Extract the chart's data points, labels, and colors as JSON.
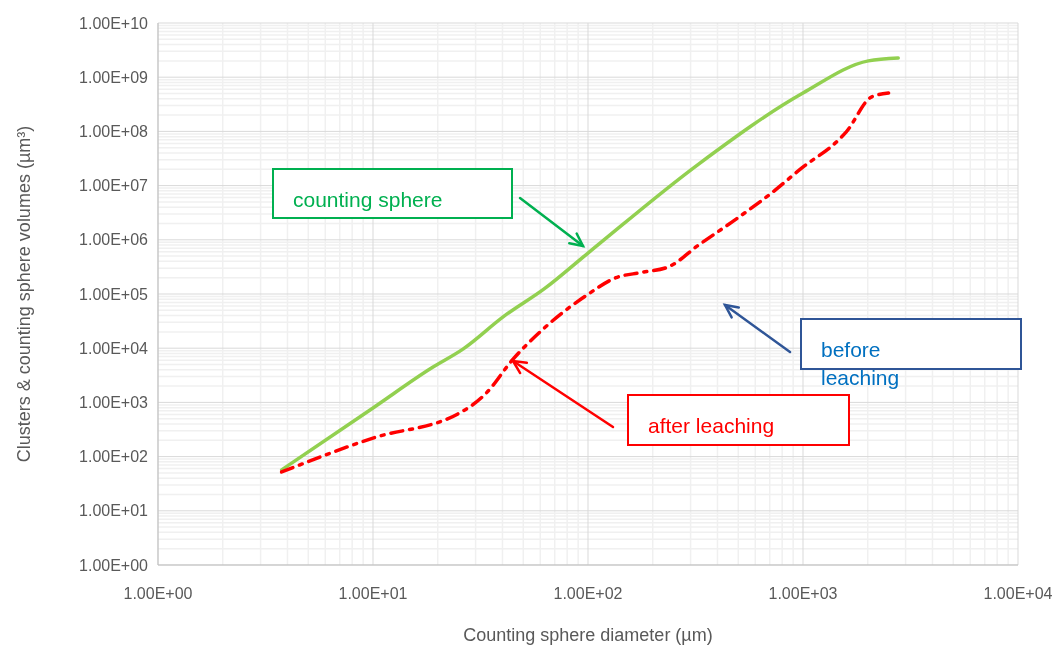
{
  "chart_data": {
    "type": "line",
    "xlabel": "Counting sphere diameter (µm)",
    "ylabel": "Clusters & counting sphere volumes (µm³)",
    "log": "xy",
    "grid": true,
    "marker": "none",
    "xlim": [
      1,
      10000
    ],
    "xticks": [
      {
        "value": 1,
        "label": "1.00E+00"
      },
      {
        "value": 10,
        "label": "1.00E+01"
      },
      {
        "value": 100,
        "label": "1.00E+02"
      },
      {
        "value": 1000,
        "label": "1.00E+03"
      },
      {
        "value": 10000,
        "label": "1.00E+04"
      }
    ],
    "ylim": [
      1,
      10000000000
    ],
    "yticks": [
      {
        "value": 1,
        "label": "1.00E+00"
      },
      {
        "value": 10,
        "label": "1.00E+01"
      },
      {
        "value": 100,
        "label": "1.00E+02"
      },
      {
        "value": 1000,
        "label": "1.00E+03"
      },
      {
        "value": 10000,
        "label": "1.00E+04"
      },
      {
        "value": 100000,
        "label": "1.00E+05"
      },
      {
        "value": 1000000,
        "label": "1.00E+06"
      },
      {
        "value": 10000000,
        "label": "1.00E+07"
      },
      {
        "value": 100000000,
        "label": "1.00E+08"
      },
      {
        "value": 1000000000,
        "label": "1.00E+09"
      },
      {
        "value": 10000000000,
        "label": "1.00E+10"
      }
    ],
    "series": [
      {
        "color": "#92d050",
        "line_style": "solid",
        "x": [
          3.76,
          10,
          18.7,
          26.3,
          40.7,
          62.5,
          100,
          327,
          1000,
          2014,
          2773
        ],
        "values": [
          57,
          790,
          4300,
          9700,
          39000,
          124000,
          570000,
          25000000,
          510000000,
          2000000000,
          2260000000
        ]
      },
      {
        "color": "#ff0000",
        "line_style": "dashed",
        "x": [
          3.76,
          10,
          25.2,
          29,
          33.6,
          44.4,
          61.2,
          99,
          135,
          178,
          238,
          327,
          502,
          714,
          985,
          1460,
          1590,
          2080,
          2500
        ],
        "values": [
          52,
          220,
          635,
          895,
          1480,
          6000,
          21700,
          96000,
          200000,
          250000,
          320000,
          800000,
          2600000,
          7300000,
          21000000,
          69000000,
          98000000,
          430000000,
          510000000
        ]
      }
    ],
    "annotations": [
      "counting sphere",
      "before leaching",
      "after leaching"
    ]
  }
}
